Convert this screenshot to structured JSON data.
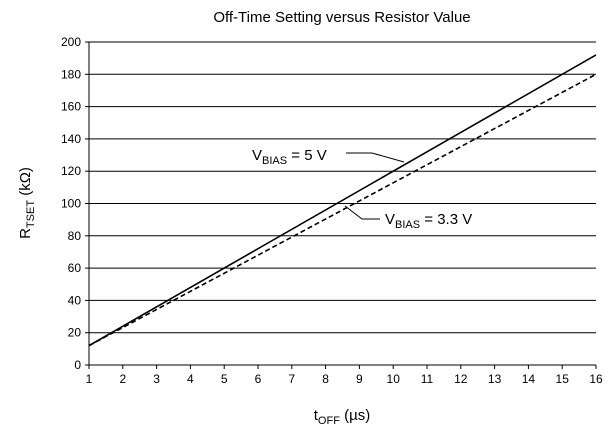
{
  "chart_data": {
    "type": "line",
    "title": "Off-Time Setting versus Resistor Value",
    "x_label": {
      "main": "t",
      "sub": "OFF",
      "rest": " (µs)"
    },
    "y_label": {
      "main": "R",
      "sub": "TSET",
      "rest": " (kΩ)"
    },
    "xlim": [
      1,
      16
    ],
    "ylim": [
      0,
      200
    ],
    "xticks": [
      1,
      2,
      3,
      4,
      5,
      6,
      7,
      8,
      9,
      10,
      11,
      12,
      13,
      14,
      15,
      16
    ],
    "yticks": [
      0,
      20,
      40,
      60,
      80,
      100,
      120,
      140,
      160,
      180,
      200
    ],
    "grid": true,
    "series": [
      {
        "label": {
          "main": "V",
          "sub": "BIAS",
          "rest": " = 5 V"
        },
        "color": "#000000",
        "dash": false,
        "x": [
          1,
          16
        ],
        "values": [
          12,
          192
        ]
      },
      {
        "label": {
          "main": "V",
          "sub": "BIAS",
          "rest": " = 3.3 V"
        },
        "color": "#000000",
        "dash": true,
        "x": [
          1,
          16
        ],
        "values": [
          12,
          180
        ]
      }
    ]
  }
}
